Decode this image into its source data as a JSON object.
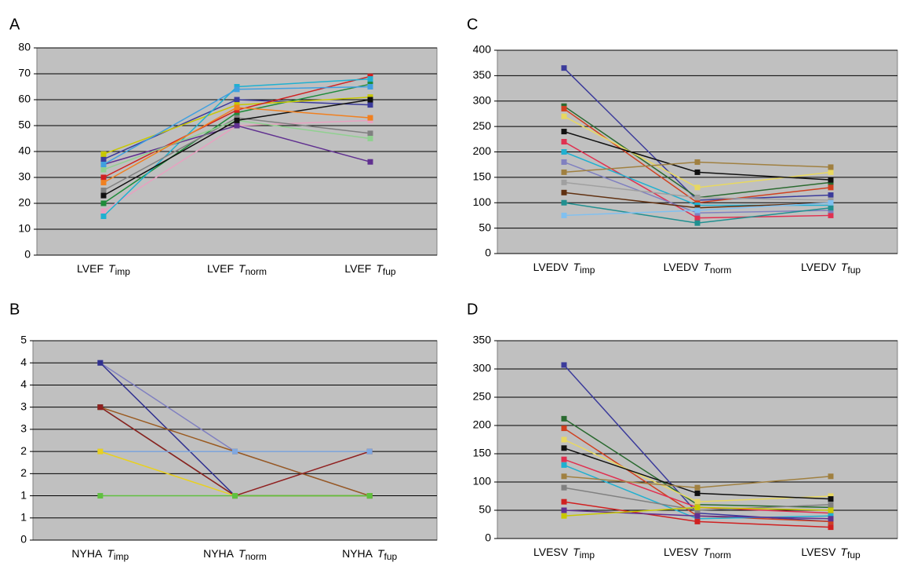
{
  "chart_data": [
    {
      "type": "line",
      "title": "A",
      "categories": [
        [
          "LVEF",
          "T",
          "imp"
        ],
        [
          "LVEF",
          "T",
          "norm"
        ],
        [
          "LVEF",
          "T",
          "fup"
        ]
      ],
      "ylim": [
        0,
        80
      ],
      "yticks": [
        0,
        10,
        20,
        30,
        40,
        50,
        60,
        70,
        80
      ],
      "grid": true,
      "series": [
        {
          "color": "#3b3b9b",
          "values": [
            37,
            60,
            58
          ]
        },
        {
          "color": "#e8a0c0",
          "values": [
            17,
            50,
            52
          ]
        },
        {
          "color": "#1f8b3a",
          "values": [
            20,
            55,
            66
          ]
        },
        {
          "color": "#c8c800",
          "values": [
            39,
            58,
            61
          ]
        },
        {
          "color": "#d02020",
          "values": [
            30,
            56,
            69
          ]
        },
        {
          "color": "#20b0d0",
          "values": [
            15,
            65,
            68
          ]
        },
        {
          "color": "#603090",
          "values": [
            35,
            50,
            36
          ]
        },
        {
          "color": "#808080",
          "values": [
            25,
            53,
            47
          ]
        },
        {
          "color": "#90d090",
          "values": [
            33,
            52,
            45
          ]
        },
        {
          "color": "#101010",
          "values": [
            23,
            52,
            60
          ]
        },
        {
          "color": "#f08020",
          "values": [
            28,
            57,
            53
          ]
        },
        {
          "color": "#40a0e0",
          "values": [
            35,
            64,
            65
          ]
        }
      ]
    },
    {
      "type": "line",
      "title": "C",
      "categories": [
        [
          "LVEDV",
          "T",
          "imp"
        ],
        [
          "LVEDV",
          "T",
          "norm"
        ],
        [
          "LVEDV",
          "T",
          "fup"
        ]
      ],
      "ylim": [
        0,
        400
      ],
      "yticks": [
        0,
        50,
        100,
        150,
        200,
        250,
        300,
        350,
        400
      ],
      "grid": true,
      "series": [
        {
          "color": "#3b3b9b",
          "values": [
            365,
            105,
            115
          ]
        },
        {
          "color": "#2a6a30",
          "values": [
            290,
            110,
            140
          ]
        },
        {
          "color": "#d04020",
          "values": [
            285,
            100,
            130
          ]
        },
        {
          "color": "#e8d860",
          "values": [
            270,
            130,
            160
          ]
        },
        {
          "color": "#101010",
          "values": [
            240,
            160,
            145
          ]
        },
        {
          "color": "#e03050",
          "values": [
            220,
            70,
            75
          ]
        },
        {
          "color": "#20b0d0",
          "values": [
            200,
            95,
            95
          ]
        },
        {
          "color": "#8080c0",
          "values": [
            180,
            80,
            85
          ]
        },
        {
          "color": "#a08040",
          "values": [
            160,
            180,
            170
          ]
        },
        {
          "color": "#a0a0a0",
          "values": [
            140,
            110,
            105
          ]
        },
        {
          "color": "#603010",
          "values": [
            120,
            90,
            100
          ]
        },
        {
          "color": "#209090",
          "values": [
            100,
            60,
            90
          ]
        },
        {
          "color": "#80c0f0",
          "values": [
            75,
            85,
            100
          ]
        }
      ]
    },
    {
      "type": "line",
      "title": "B",
      "categories": [
        [
          "NYHA",
          "T",
          "imp"
        ],
        [
          "NYHA",
          "T",
          "norm"
        ],
        [
          "NYHA",
          "T",
          "fup"
        ]
      ],
      "ylim": [
        0,
        4.5
      ],
      "yticks": [
        0,
        {
          "value": 0.5,
          "label": "1"
        },
        1,
        {
          "value": 1.5,
          "label": "2"
        },
        2,
        {
          "value": 2.5,
          "label": "3"
        },
        3,
        {
          "value": 3.5,
          "label": "4"
        },
        4,
        {
          "value": 4.5,
          "label": "5"
        }
      ],
      "grid": true,
      "series": [
        {
          "color": "#8080c0",
          "values": [
            4,
            2,
            1
          ]
        },
        {
          "color": "#303090",
          "values": [
            4,
            1,
            1
          ]
        },
        {
          "color": "#9a5a20",
          "values": [
            3,
            2,
            1
          ]
        },
        {
          "color": "#2a6a40",
          "values": [
            3,
            1,
            1
          ]
        },
        {
          "color": "#902020",
          "values": [
            3,
            1,
            2
          ]
        },
        {
          "color": "#80a8e0",
          "values": [
            2,
            2,
            2
          ]
        },
        {
          "color": "#e8d020",
          "values": [
            2,
            1,
            1
          ]
        },
        {
          "color": "#60c040",
          "values": [
            1,
            1,
            1
          ]
        }
      ]
    },
    {
      "type": "line",
      "title": "D",
      "categories": [
        [
          "LVESV",
          "T",
          "imp"
        ],
        [
          "LVESV",
          "T",
          "norm"
        ],
        [
          "LVESV",
          "T",
          "fup"
        ]
      ],
      "ylim": [
        0,
        350
      ],
      "yticks": [
        0,
        50,
        100,
        150,
        200,
        250,
        300,
        350
      ],
      "grid": true,
      "series": [
        {
          "color": "#3b3b9b",
          "values": [
            307,
            45,
            30
          ]
        },
        {
          "color": "#2a6a30",
          "values": [
            212,
            60,
            55
          ]
        },
        {
          "color": "#d04020",
          "values": [
            195,
            40,
            30
          ]
        },
        {
          "color": "#e8d860",
          "values": [
            175,
            65,
            75
          ]
        },
        {
          "color": "#101010",
          "values": [
            160,
            80,
            70
          ]
        },
        {
          "color": "#e03050",
          "values": [
            140,
            55,
            45
          ]
        },
        {
          "color": "#20b0d0",
          "values": [
            130,
            35,
            40
          ]
        },
        {
          "color": "#a08040",
          "values": [
            110,
            90,
            110
          ]
        },
        {
          "color": "#808080",
          "values": [
            90,
            50,
            60
          ]
        },
        {
          "color": "#d02020",
          "values": [
            65,
            30,
            20
          ]
        },
        {
          "color": "#603090",
          "values": [
            50,
            40,
            35
          ]
        },
        {
          "color": "#c8c800",
          "values": [
            40,
            55,
            50
          ]
        }
      ]
    }
  ]
}
